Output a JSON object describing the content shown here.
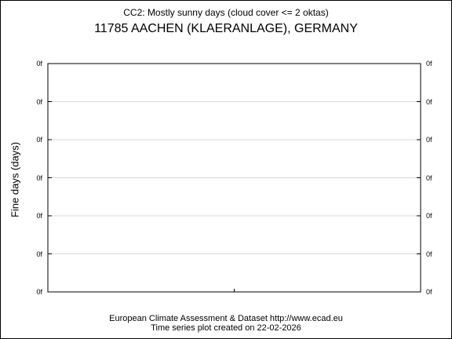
{
  "chart_data": {
    "type": "line",
    "title": "CC2: Mostly sunny days (cloud cover <= 2 oktas)",
    "subtitle": "11785 AACHEN (KLAERANLAGE), GERMANY",
    "ylabel": "Fine days (days)",
    "xlabel": "",
    "y_tick_labels": [
      "0f",
      "0f",
      "0f",
      "0f",
      "0f",
      "0f",
      "0f"
    ],
    "series": [],
    "grid": true
  },
  "footer": {
    "source": "European Climate Assessment & Dataset  http://www.ecad.eu",
    "created": "Time series plot created on 22-02-2026"
  }
}
